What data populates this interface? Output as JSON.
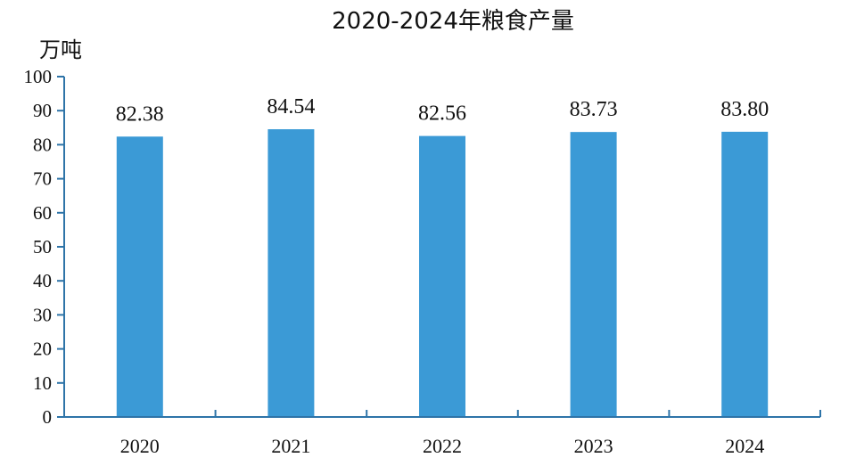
{
  "chart_data": {
    "type": "bar",
    "title": "2020-2024年粮食产量",
    "unit_label": "万吨",
    "categories": [
      "2020",
      "2021",
      "2022",
      "2023",
      "2024"
    ],
    "values": [
      82.38,
      84.54,
      82.56,
      83.73,
      83.8
    ],
    "data_labels": [
      "82.38",
      "84.54",
      "82.56",
      "83.73",
      "83.80"
    ],
    "ylim": [
      0,
      100
    ],
    "y_ticks": [
      0,
      10,
      20,
      30,
      40,
      50,
      60,
      70,
      80,
      90,
      100
    ],
    "grid": false,
    "legend": "none",
    "bar_color": "#3b9ad6",
    "axis_color": "#2e74a8"
  }
}
